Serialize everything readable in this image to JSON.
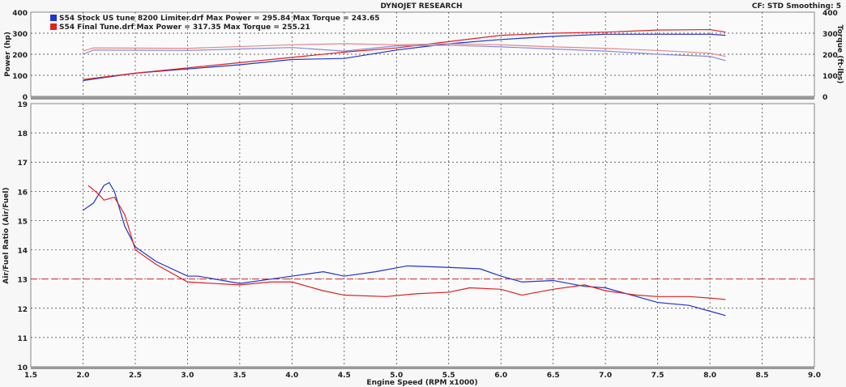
{
  "header": {
    "title": "DYNOJET RESEARCH",
    "settings": "CF: STD  Smoothing: 5"
  },
  "legend": [
    {
      "label": "S54 Stock US tune 8200 Limiter.drf Max Power = 295.84    Max Torque = 243.65",
      "color": "#2233cc"
    },
    {
      "label": "S54 Final Tune.drf Max Power = 317.35    Max Torque = 255.21",
      "color": "#dd2222"
    }
  ],
  "chart_data": [
    {
      "type": "line",
      "ylabel": "Power (hp)",
      "y2label": "Torque (ft-lbs)",
      "xlim": [
        1.5,
        9.0
      ],
      "ylim": [
        0,
        400
      ],
      "y2lim": [
        0,
        400
      ],
      "yticks": [
        "0",
        "100",
        "200",
        "300",
        "400"
      ],
      "y2ticks": [
        "0",
        "100",
        "200",
        "300",
        "400"
      ],
      "grid": true,
      "series": [
        {
          "name": "S54 Stock US tune 8200 Limiter.drf",
          "quantity": "power",
          "color": "#2233cc",
          "x": [
            2.0,
            2.5,
            3.0,
            3.5,
            4.0,
            4.5,
            5.0,
            5.5,
            6.0,
            6.5,
            7.0,
            7.5,
            8.0,
            8.15
          ],
          "y": [
            75,
            110,
            130,
            150,
            175,
            180,
            220,
            250,
            270,
            285,
            295,
            295,
            295,
            290
          ]
        },
        {
          "name": "S54 Final Tune.drf",
          "quantity": "power",
          "color": "#dd2222",
          "x": [
            2.0,
            2.5,
            3.0,
            3.5,
            4.0,
            4.5,
            5.0,
            5.5,
            6.0,
            6.5,
            7.0,
            7.5,
            8.0,
            8.15
          ],
          "y": [
            80,
            110,
            135,
            160,
            185,
            210,
            230,
            260,
            290,
            300,
            305,
            315,
            317,
            305
          ]
        },
        {
          "name": "S54 Stock US tune 8200 Limiter.drf",
          "quantity": "torque",
          "color": "#8888dd",
          "x": [
            2.0,
            2.1,
            3.0,
            3.5,
            4.0,
            4.5,
            5.0,
            5.5,
            6.0,
            6.5,
            7.0,
            7.5,
            8.0,
            8.15
          ],
          "y": [
            200,
            220,
            218,
            225,
            232,
            215,
            240,
            243,
            235,
            225,
            215,
            200,
            190,
            170
          ]
        },
        {
          "name": "S54 Final Tune.drf",
          "quantity": "torque",
          "color": "#e08888",
          "x": [
            2.0,
            2.1,
            3.0,
            4.0,
            4.5,
            5.0,
            5.5,
            6.0,
            6.5,
            7.0,
            7.5,
            8.0,
            8.15
          ],
          "y": [
            215,
            230,
            228,
            245,
            250,
            245,
            250,
            245,
            235,
            228,
            218,
            205,
            190
          ]
        }
      ]
    },
    {
      "type": "line",
      "xlabel": "Engine Speed (RPM x1000)",
      "ylabel": "Air/Fuel Ratio (Air/Fuel)",
      "xlim": [
        1.5,
        9.0
      ],
      "ylim": [
        10,
        19
      ],
      "grid": true,
      "xticks": [
        "1.5",
        "2.0",
        "2.5",
        "3.0",
        "3.5",
        "4.0",
        "4.5",
        "5.0",
        "5.5",
        "6.0",
        "6.5",
        "7.0",
        "7.5",
        "8.0",
        "8.5",
        "9.0"
      ],
      "yticks": [
        "10",
        "11",
        "12",
        "13",
        "14",
        "15",
        "16",
        "17",
        "18",
        "19"
      ],
      "reference_line": {
        "y": 13.0,
        "color": "#dd2222",
        "style": "dashed"
      },
      "series": [
        {
          "name": "S54 Stock US tune 8200 Limiter.drf",
          "color": "#2233cc",
          "x": [
            2.0,
            2.1,
            2.2,
            2.25,
            2.3,
            2.4,
            2.5,
            2.7,
            3.0,
            3.1,
            3.5,
            3.8,
            4.0,
            4.3,
            4.5,
            4.8,
            5.1,
            5.5,
            5.8,
            6.0,
            6.2,
            6.5,
            6.8,
            7.0,
            7.5,
            7.8,
            8.0,
            8.15
          ],
          "y": [
            15.35,
            15.6,
            16.2,
            16.3,
            16.0,
            14.8,
            14.1,
            13.6,
            13.1,
            13.1,
            12.85,
            13.0,
            13.1,
            13.25,
            13.1,
            13.25,
            13.45,
            13.4,
            13.35,
            13.1,
            12.9,
            12.95,
            12.75,
            12.7,
            12.2,
            12.1,
            11.9,
            11.75
          ]
        },
        {
          "name": "S54 Final Tune.drf",
          "color": "#dd2222",
          "x": [
            2.05,
            2.15,
            2.2,
            2.3,
            2.4,
            2.5,
            2.7,
            3.0,
            3.5,
            3.8,
            4.0,
            4.3,
            4.5,
            4.9,
            5.2,
            5.5,
            5.7,
            6.0,
            6.2,
            6.5,
            6.8,
            7.0,
            7.3,
            7.5,
            7.8,
            8.0,
            8.15
          ],
          "y": [
            16.2,
            15.9,
            15.7,
            15.8,
            15.2,
            14.0,
            13.5,
            12.9,
            12.8,
            12.9,
            12.9,
            12.6,
            12.45,
            12.4,
            12.5,
            12.55,
            12.7,
            12.65,
            12.45,
            12.65,
            12.8,
            12.6,
            12.45,
            12.4,
            12.4,
            12.35,
            12.3
          ]
        }
      ]
    }
  ]
}
